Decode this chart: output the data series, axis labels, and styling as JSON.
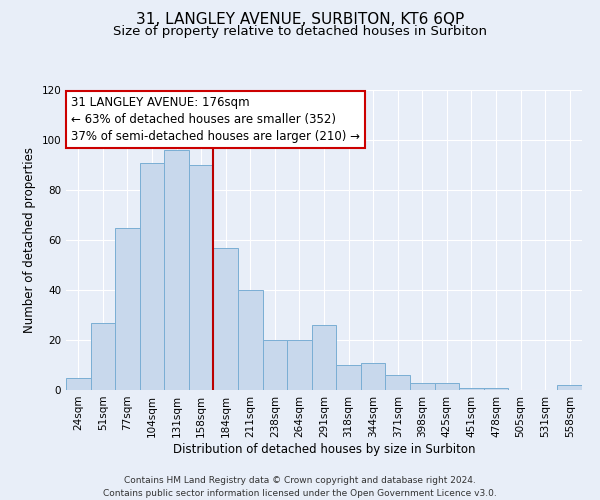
{
  "title": "31, LANGLEY AVENUE, SURBITON, KT6 6QP",
  "subtitle": "Size of property relative to detached houses in Surbiton",
  "xlabel": "Distribution of detached houses by size in Surbiton",
  "ylabel": "Number of detached properties",
  "footer_lines": [
    "Contains HM Land Registry data © Crown copyright and database right 2024.",
    "Contains public sector information licensed under the Open Government Licence v3.0."
  ],
  "bar_labels": [
    "24sqm",
    "51sqm",
    "77sqm",
    "104sqm",
    "131sqm",
    "158sqm",
    "184sqm",
    "211sqm",
    "238sqm",
    "264sqm",
    "291sqm",
    "318sqm",
    "344sqm",
    "371sqm",
    "398sqm",
    "425sqm",
    "451sqm",
    "478sqm",
    "505sqm",
    "531sqm",
    "558sqm"
  ],
  "bar_values": [
    5,
    27,
    65,
    91,
    96,
    90,
    57,
    40,
    20,
    20,
    26,
    10,
    11,
    6,
    3,
    3,
    1,
    1,
    0,
    0,
    2
  ],
  "bar_color": "#c8d8ec",
  "bar_edgecolor": "#7aaed4",
  "vline_x_index": 6,
  "vline_color": "#bb0000",
  "annotation_title": "31 LANGLEY AVENUE: 176sqm",
  "annotation_line1": "← 63% of detached houses are smaller (352)",
  "annotation_line2": "37% of semi-detached houses are larger (210) →",
  "annotation_box_edgecolor": "#cc0000",
  "ylim": [
    0,
    120
  ],
  "yticks": [
    0,
    20,
    40,
    60,
    80,
    100,
    120
  ],
  "background_color": "#e8eef8",
  "grid_color": "#ffffff",
  "title_fontsize": 11,
  "subtitle_fontsize": 9.5,
  "axis_label_fontsize": 8.5,
  "tick_fontsize": 7.5,
  "annotation_fontsize": 8.5,
  "footer_fontsize": 6.5
}
